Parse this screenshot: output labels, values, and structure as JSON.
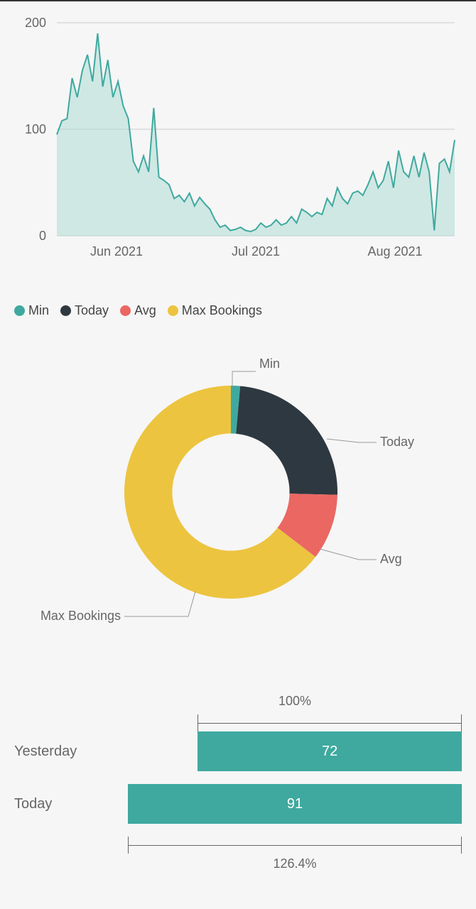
{
  "area_chart": {
    "type": "area",
    "ylim": [
      0,
      200
    ],
    "yticks": [
      0,
      100,
      200
    ],
    "xticks": [
      "Jun 2021",
      "Jul 2021",
      "Aug 2021"
    ],
    "line_color": "#3fa99f",
    "fill_color": "#a7d9d2",
    "background_color": "#f6f6f6",
    "grid_color": "#d0d0d0",
    "axis_color": "#666666",
    "label_fontsize": 18,
    "values": [
      95,
      108,
      110,
      148,
      130,
      155,
      170,
      145,
      190,
      140,
      165,
      130,
      145,
      122,
      110,
      70,
      60,
      75,
      60,
      120,
      55,
      52,
      48,
      35,
      38,
      32,
      40,
      28,
      36,
      30,
      25,
      15,
      8,
      10,
      5,
      6,
      8,
      5,
      4,
      6,
      12,
      8,
      10,
      15,
      10,
      12,
      18,
      12,
      25,
      22,
      18,
      22,
      20,
      35,
      28,
      45,
      35,
      30,
      40,
      42,
      38,
      48,
      60,
      45,
      52,
      70,
      45,
      80,
      60,
      55,
      75,
      55,
      78,
      60,
      5,
      68,
      72,
      60,
      90
    ]
  },
  "legend": {
    "items": [
      {
        "label": "Min",
        "color": "#3fa99f"
      },
      {
        "label": "Today",
        "color": "#2e3840"
      },
      {
        "label": "Avg",
        "color": "#ea6762"
      },
      {
        "label": "Max Bookings",
        "color": "#ecc43f"
      }
    ],
    "fontsize": 18
  },
  "donut": {
    "type": "donut",
    "background_color": "#f6f6f6",
    "inner_radius_ratio": 0.55,
    "slices": [
      {
        "label": "Min",
        "value": 1.4,
        "color": "#3fa99f"
      },
      {
        "label": "Today",
        "value": 24,
        "color": "#2e3840"
      },
      {
        "label": "Avg",
        "value": 10,
        "color": "#ea6762"
      },
      {
        "label": "Max Bookings",
        "value": 64.6,
        "color": "#ecc43f"
      }
    ],
    "label_fontsize": 18,
    "label_color": "#666666",
    "leader_color": "#999999"
  },
  "bar_compare": {
    "type": "bar",
    "bar_color": "#3fa99f",
    "text_color": "#ffffff",
    "label_color": "#666666",
    "label_fontsize": 20,
    "top_bracket_label": "100%",
    "bottom_bracket_label": "126.4%",
    "rows": [
      {
        "label": "Yesterday",
        "value": 72,
        "width_pct": 79.1,
        "offset_pct": 20.9
      },
      {
        "label": "Today",
        "value": 91,
        "width_pct": 100,
        "offset_pct": 0
      }
    ],
    "bracket_color": "#666666"
  }
}
